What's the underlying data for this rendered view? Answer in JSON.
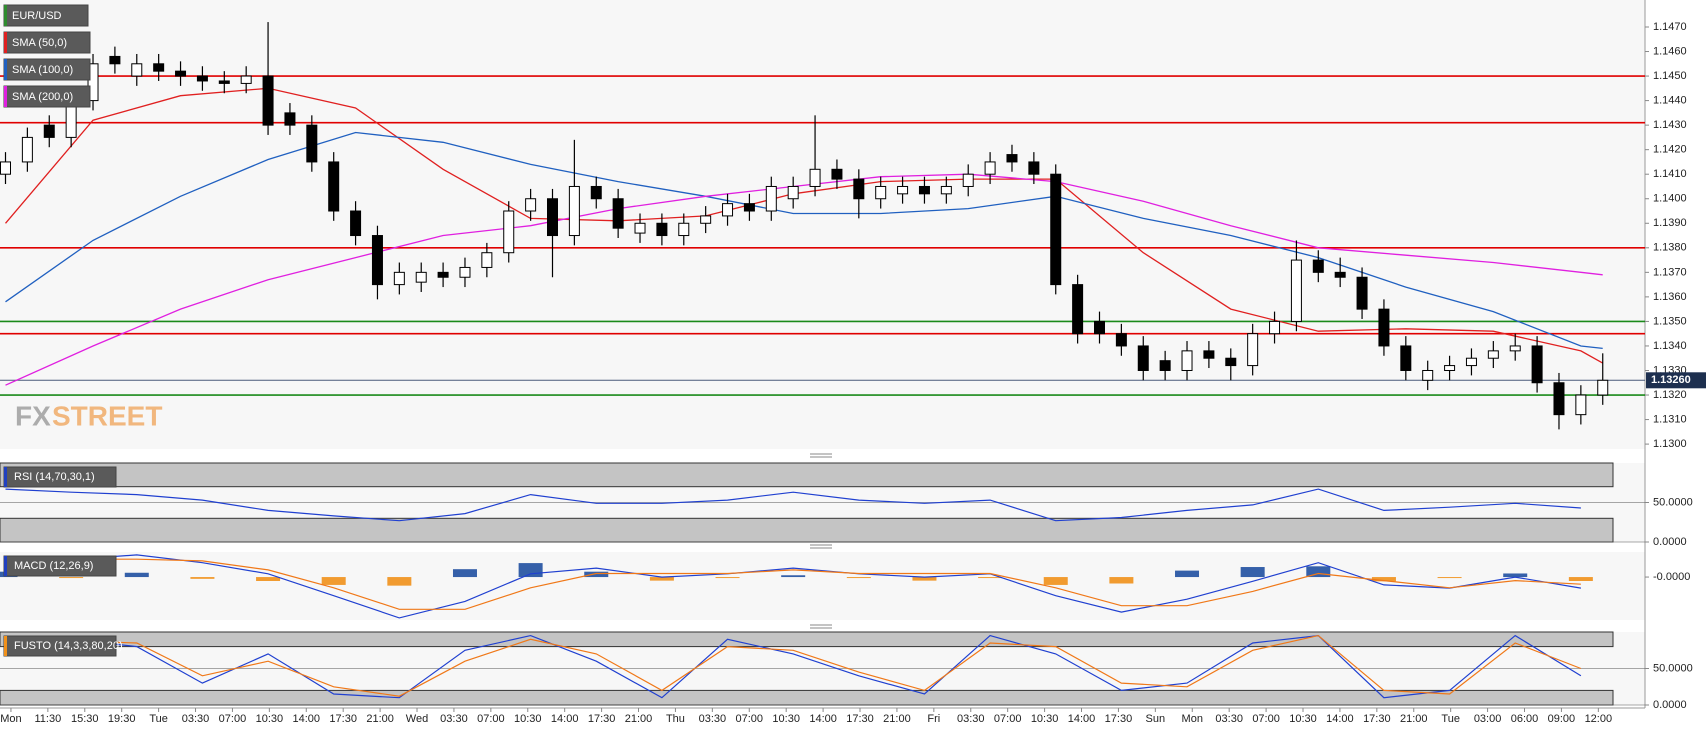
{
  "chart_data": [
    {
      "type": "candlestick",
      "title": "EUR/USD",
      "title_color": "#2e8b2e",
      "candles": {
        "open": [
          1.141,
          1.1415,
          1.143,
          1.1425,
          1.144,
          1.1458,
          1.145,
          1.1455,
          1.1452,
          1.145,
          1.1448,
          1.1447,
          1.145,
          1.1435,
          1.143,
          1.1415,
          1.1395,
          1.1385,
          1.1365,
          1.1366,
          1.137,
          1.1368,
          1.1372,
          1.1378,
          1.1395,
          1.14,
          1.1385,
          1.1405,
          1.14,
          1.1386,
          1.139,
          1.1385,
          1.139,
          1.1393,
          1.1398,
          1.1395,
          1.14,
          1.1405,
          1.1412,
          1.1408,
          1.14,
          1.1402,
          1.1405,
          1.1402,
          1.1405,
          1.141,
          1.1418,
          1.1415,
          1.141,
          1.1365,
          1.135,
          1.1345,
          1.134,
          1.1334,
          1.133,
          1.1338,
          1.1335,
          1.1332,
          1.1345,
          1.135,
          1.1375,
          1.137,
          1.1368,
          1.1355,
          1.134,
          1.1326,
          1.133,
          1.1332,
          1.1335,
          1.1338,
          1.134,
          1.1325,
          1.1312,
          1.132
        ],
        "high": [
          1.1419,
          1.1429,
          1.1434,
          1.1444,
          1.1459,
          1.1462,
          1.1459,
          1.1459,
          1.1456,
          1.1454,
          1.1452,
          1.1454,
          1.1472,
          1.1439,
          1.1434,
          1.1419,
          1.1399,
          1.1389,
          1.1374,
          1.1374,
          1.1374,
          1.1376,
          1.1382,
          1.1399,
          1.1404,
          1.1404,
          1.1424,
          1.1409,
          1.1404,
          1.1394,
          1.1394,
          1.1394,
          1.1397,
          1.1402,
          1.1402,
          1.1409,
          1.1409,
          1.1434,
          1.1416,
          1.1412,
          1.1409,
          1.1409,
          1.1409,
          1.1409,
          1.1414,
          1.1419,
          1.1422,
          1.1419,
          1.1414,
          1.1369,
          1.1354,
          1.1349,
          1.1344,
          1.1338,
          1.1342,
          1.1342,
          1.1339,
          1.1349,
          1.1354,
          1.1383,
          1.1379,
          1.1376,
          1.1372,
          1.1359,
          1.1344,
          1.1334,
          1.1336,
          1.1339,
          1.1342,
          1.1345,
          1.1344,
          1.1329,
          1.1324,
          1.1337
        ],
        "low": [
          1.1406,
          1.1411,
          1.1421,
          1.1421,
          1.1436,
          1.1451,
          1.1446,
          1.1448,
          1.1446,
          1.1444,
          1.1443,
          1.1443,
          1.1426,
          1.1426,
          1.1411,
          1.1391,
          1.1381,
          1.1359,
          1.1361,
          1.1362,
          1.1364,
          1.1364,
          1.1368,
          1.1374,
          1.1391,
          1.1368,
          1.1381,
          1.1396,
          1.1384,
          1.1382,
          1.1381,
          1.1381,
          1.1386,
          1.1389,
          1.1391,
          1.1391,
          1.1396,
          1.1401,
          1.1404,
          1.1392,
          1.1396,
          1.1398,
          1.1398,
          1.1398,
          1.1401,
          1.1406,
          1.1411,
          1.1406,
          1.1361,
          1.1341,
          1.1341,
          1.1336,
          1.1326,
          1.1326,
          1.1326,
          1.1331,
          1.1326,
          1.1328,
          1.1341,
          1.1346,
          1.1366,
          1.1364,
          1.1351,
          1.1336,
          1.1326,
          1.1322,
          1.1326,
          1.1328,
          1.1331,
          1.1334,
          1.1321,
          1.1306,
          1.1308,
          1.1316
        ],
        "close": [
          1.1415,
          1.1425,
          1.1425,
          1.144,
          1.1455,
          1.1455,
          1.1455,
          1.1452,
          1.145,
          1.1448,
          1.1447,
          1.145,
          1.143,
          1.143,
          1.1415,
          1.1395,
          1.1385,
          1.1365,
          1.137,
          1.137,
          1.1368,
          1.1372,
          1.1378,
          1.1395,
          1.14,
          1.1385,
          1.1405,
          1.14,
          1.1388,
          1.139,
          1.1385,
          1.139,
          1.1393,
          1.1398,
          1.1395,
          1.1405,
          1.1405,
          1.1412,
          1.1408,
          1.14,
          1.1405,
          1.1405,
          1.1402,
          1.1405,
          1.141,
          1.1415,
          1.1415,
          1.141,
          1.1365,
          1.1345,
          1.1345,
          1.134,
          1.133,
          1.133,
          1.1338,
          1.1335,
          1.1332,
          1.1345,
          1.135,
          1.1375,
          1.137,
          1.1368,
          1.1355,
          1.134,
          1.133,
          1.133,
          1.1332,
          1.1335,
          1.1338,
          1.134,
          1.1325,
          1.1312,
          1.132,
          1.1326
        ]
      },
      "color_up": "#ffffff",
      "color_down": "#000000",
      "series": [
        {
          "name": "SMA (50,0)",
          "color": "#e02020",
          "x": [
            0,
            4,
            8,
            12,
            16,
            20,
            24,
            28,
            32,
            36,
            40,
            44,
            48,
            52,
            56,
            60,
            64,
            68,
            72,
            73
          ],
          "values": [
            1.139,
            1.1432,
            1.1442,
            1.1445,
            1.1437,
            1.1412,
            1.1392,
            1.1391,
            1.1393,
            1.1402,
            1.1407,
            1.1408,
            1.1408,
            1.1378,
            1.1355,
            1.1346,
            1.1347,
            1.1346,
            1.1338,
            1.1333
          ]
        },
        {
          "name": "SMA (100,0)",
          "color": "#2060c0",
          "x": [
            0,
            4,
            8,
            12,
            16,
            20,
            24,
            28,
            32,
            36,
            40,
            44,
            48,
            52,
            56,
            60,
            64,
            68,
            72,
            73
          ],
          "values": [
            1.1358,
            1.1383,
            1.1401,
            1.1416,
            1.1427,
            1.1423,
            1.1414,
            1.1407,
            1.1401,
            1.1394,
            1.1394,
            1.1396,
            1.1401,
            1.1392,
            1.1385,
            1.1376,
            1.1364,
            1.1354,
            1.134,
            1.1339
          ]
        },
        {
          "name": "SMA (200,0)",
          "color": "#e020e0",
          "x": [
            0,
            4,
            8,
            12,
            16,
            20,
            24,
            28,
            32,
            36,
            40,
            44,
            48,
            52,
            56,
            60,
            64,
            68,
            72,
            73
          ],
          "values": [
            1.1324,
            1.134,
            1.1355,
            1.1367,
            1.1376,
            1.1385,
            1.1389,
            1.1396,
            1.1401,
            1.1405,
            1.1409,
            1.141,
            1.1407,
            1.1399,
            1.1389,
            1.138,
            1.1377,
            1.1374,
            1.137,
            1.1369
          ]
        }
      ],
      "levels": [
        {
          "value": 1.145,
          "color": "#e00000"
        },
        {
          "value": 1.1431,
          "color": "#e00000"
        },
        {
          "value": 1.138,
          "color": "#e00000"
        },
        {
          "value": 1.1345,
          "color": "#e00000"
        },
        {
          "value": 1.135,
          "color": "#1a8a1a"
        },
        {
          "value": 1.132,
          "color": "#1a8a1a"
        }
      ],
      "last_price": {
        "value": 1.1326,
        "label": "1.13260"
      },
      "ylim": [
        1.1298,
        1.1481
      ],
      "yticks": [
        {
          "value": 1.13,
          "label": "1.1300"
        },
        {
          "value": 1.131,
          "label": "1.1310"
        },
        {
          "value": 1.132,
          "label": "1.1320"
        },
        {
          "value": 1.133,
          "label": "1.1330"
        },
        {
          "value": 1.134,
          "label": "1.1340"
        },
        {
          "value": 1.135,
          "label": "1.1350"
        },
        {
          "value": 1.136,
          "label": "1.1360"
        },
        {
          "value": 1.137,
          "label": "1.1370"
        },
        {
          "value": 1.138,
          "label": "1.1380"
        },
        {
          "value": 1.139,
          "label": "1.1390"
        },
        {
          "value": 1.14,
          "label": "1.1400"
        },
        {
          "value": 1.141,
          "label": "1.1410"
        },
        {
          "value": 1.142,
          "label": "1.1420"
        },
        {
          "value": 1.143,
          "label": "1.1430"
        },
        {
          "value": 1.144,
          "label": "1.1440"
        },
        {
          "value": 1.145,
          "label": "1.1450"
        },
        {
          "value": 1.146,
          "label": "1.1460"
        },
        {
          "value": 1.147,
          "label": "1.1470"
        }
      ],
      "x_labels": [
        "Mon",
        "11:30",
        "15:30",
        "19:30",
        "Tue",
        "03:30",
        "07:00",
        "10:30",
        "14:00",
        "17:30",
        "21:00",
        "Wed",
        "03:30",
        "07:00",
        "10:30",
        "14:00",
        "17:30",
        "21:00",
        "Thu",
        "03:30",
        "07:00",
        "10:30",
        "14:00",
        "17:30",
        "21:00",
        "Fri",
        "03:30",
        "07:00",
        "10:30",
        "14:00",
        "17:30",
        "Sun",
        "Mon",
        "03:30",
        "07:00",
        "10:30",
        "14:00",
        "17:30",
        "21:00",
        "Tue",
        "03:00",
        "06:00",
        "09:00",
        "12:00"
      ],
      "watermark": {
        "left": "FX",
        "right": "STREET"
      }
    },
    {
      "type": "line",
      "title": "RSI (14,70,30,1)",
      "title_color": "#2040c0",
      "ylim": [
        0,
        100
      ],
      "levels": [
        30,
        70
      ],
      "yticks": [
        {
          "value": 50,
          "label": "50.0000"
        },
        {
          "value": 0,
          "label": "0.0000"
        }
      ],
      "x": [
        0,
        3,
        6,
        9,
        12,
        15,
        18,
        21,
        24,
        27,
        30,
        33,
        36,
        39,
        42,
        45,
        48,
        51,
        54,
        57,
        60,
        63,
        66,
        69,
        72
      ],
      "series": [
        {
          "color": "#2040d0",
          "values": [
            67,
            63,
            60,
            53,
            40,
            33,
            27,
            36,
            60,
            49,
            49,
            53,
            63,
            53,
            49,
            53,
            27,
            31,
            40,
            47,
            67,
            40,
            44,
            49,
            43
          ]
        }
      ]
    },
    {
      "type": "macd",
      "title": "MACD (12,26,9)",
      "title_color": "#2040c0",
      "ylim": [
        -0.0012,
        0.0007
      ],
      "yticks": [
        {
          "value": 0,
          "label": "-0.0000"
        }
      ],
      "pos_color": "#1f4fa0",
      "neg_color": "#f0901a",
      "x": [
        0,
        3,
        6,
        9,
        12,
        15,
        18,
        21,
        24,
        27,
        30,
        33,
        36,
        39,
        42,
        45,
        48,
        51,
        54,
        57,
        60,
        63,
        66,
        69,
        72
      ],
      "histogram": [
        0.00015,
        -1e-05,
        0.00012,
        -5e-05,
        -0.00011,
        -0.00022,
        -0.00024,
        0.00022,
        0.00039,
        0.00015,
        -0.0001,
        -1e-05,
        5e-05,
        -1e-05,
        -0.0001,
        -1e-05,
        -0.00022,
        -0.00018,
        0.00018,
        0.00028,
        0.0003,
        -0.00012,
        -1e-05,
        0.0001,
        -0.00011
      ],
      "series": [
        {
          "color": "#2040d0",
          "values": [
            0.00055,
            0.00049,
            0.00062,
            0.0004,
            9e-05,
            -0.00052,
            -0.00114,
            -0.00068,
            9e-05,
            0.00025,
            0,
            9e-05,
            0.00025,
            9e-05,
            0,
            9e-05,
            -0.00052,
            -0.00098,
            -0.00062,
            -0.00012,
            0.0004,
            -0.00022,
            -0.00031,
            0,
            -0.00031
          ]
        },
        {
          "color": "#f07818",
          "values": [
            0.0004,
            0.0005,
            0.0005,
            0.00045,
            0.0002,
            -0.0003,
            -0.0009,
            -0.0009,
            -0.0003,
            0.0001,
            0.0001,
            0.0001,
            0.0002,
            0.0001,
            0.0001,
            0.0001,
            -0.0003,
            -0.0008,
            -0.0008,
            -0.0004,
            0.0001,
            -0.0001,
            -0.0003,
            -0.0001,
            -0.0002
          ]
        }
      ]
    },
    {
      "type": "line",
      "title": "FUSTO (14,3,3,80,20)",
      "title_color": "#f0901a",
      "ylim": [
        0,
        100
      ],
      "levels": [
        20,
        80
      ],
      "yticks": [
        {
          "value": 50,
          "label": "50.0000"
        },
        {
          "value": 0,
          "label": "0.0000"
        }
      ],
      "x": [
        0,
        3,
        6,
        9,
        12,
        15,
        18,
        21,
        24,
        27,
        30,
        33,
        36,
        39,
        42,
        45,
        48,
        51,
        54,
        57,
        60,
        63,
        66,
        69,
        72
      ],
      "series": [
        {
          "color": "#2040d0",
          "values": [
            85,
            90,
            80,
            30,
            70,
            15,
            10,
            75,
            95,
            60,
            10,
            90,
            70,
            40,
            15,
            95,
            70,
            20,
            30,
            85,
            95,
            10,
            20,
            95,
            40
          ]
        },
        {
          "color": "#f07818",
          "values": [
            80,
            88,
            85,
            40,
            60,
            25,
            12,
            60,
            90,
            70,
            20,
            80,
            75,
            45,
            20,
            85,
            80,
            30,
            25,
            75,
            95,
            20,
            15,
            85,
            50
          ]
        }
      ]
    }
  ]
}
